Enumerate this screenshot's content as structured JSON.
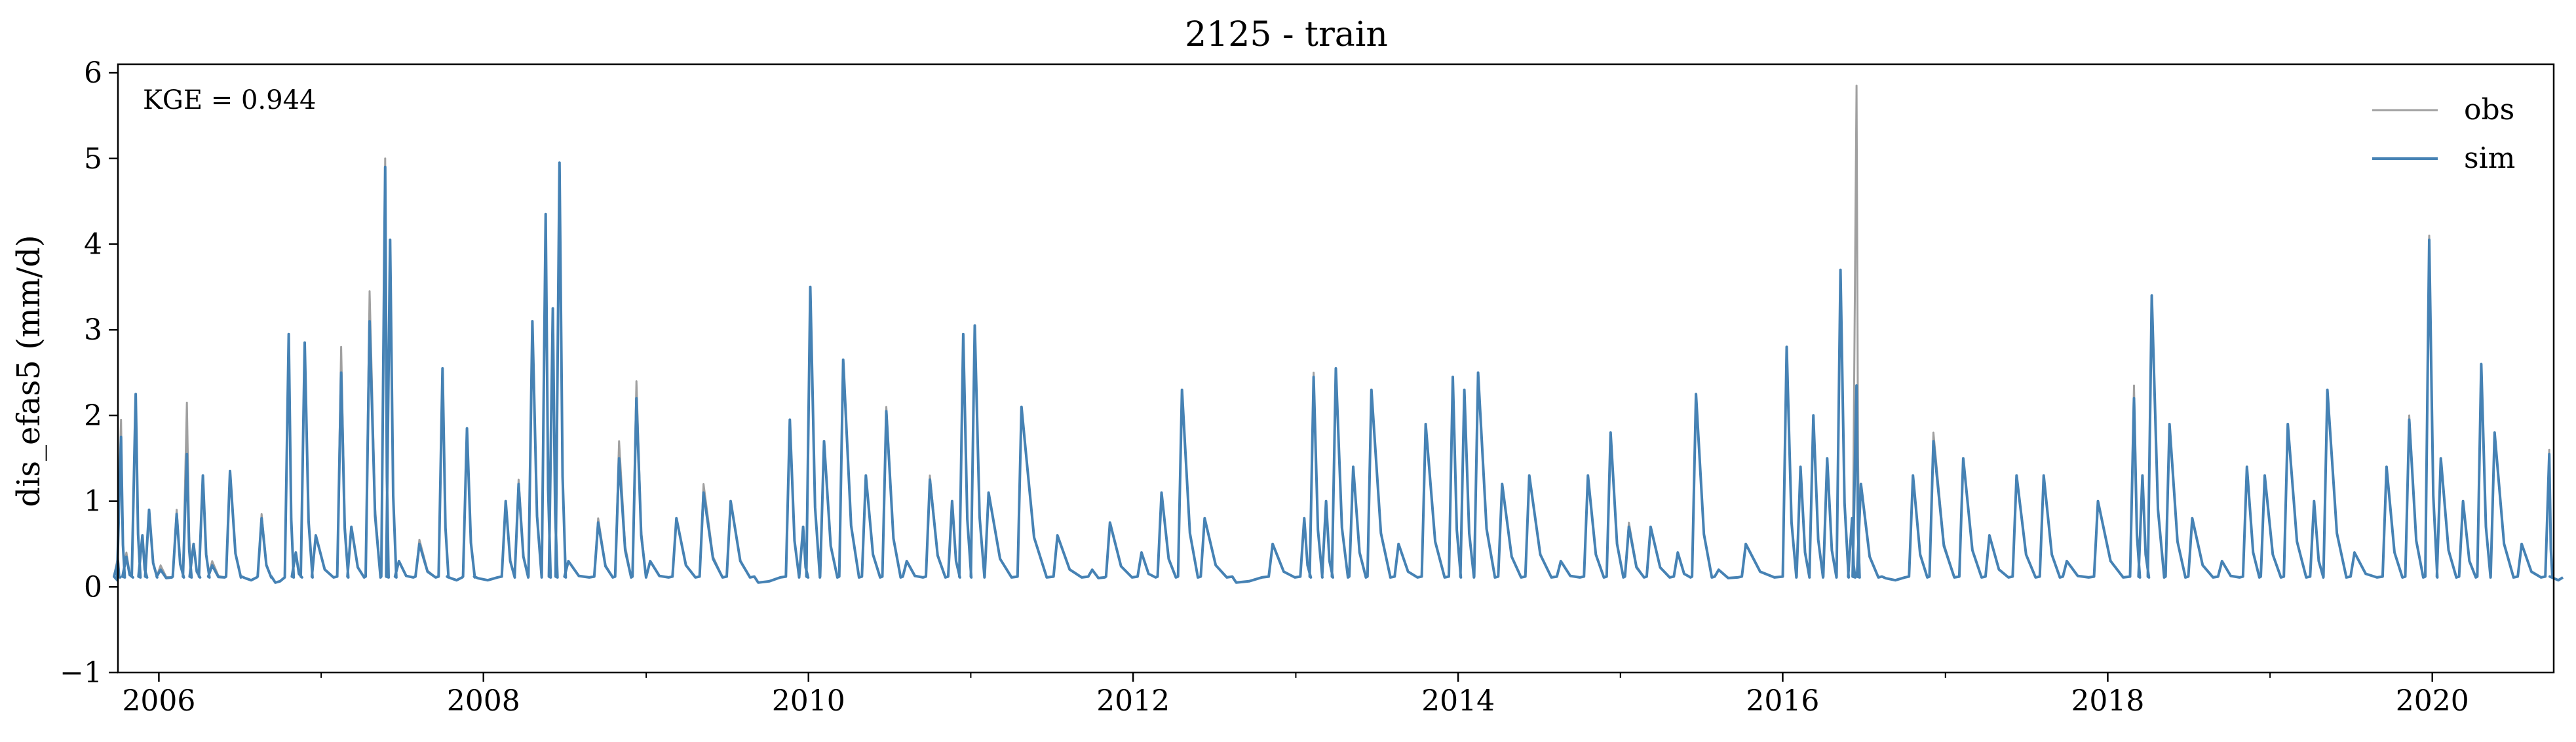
{
  "chart_data": {
    "type": "line",
    "title": "2125 - train",
    "xlabel": "",
    "ylabel": "dis_efas5 (mm/d)",
    "annotation": "KGE = 0.944",
    "x_range": [
      "2005-10-01",
      "2020-09-30"
    ],
    "ylim": [
      -1,
      6.1
    ],
    "y_ticks": [
      -1,
      0,
      1,
      2,
      3,
      4,
      5,
      6
    ],
    "y_tick_labels": [
      "−1",
      "0",
      "1",
      "2",
      "3",
      "4",
      "5",
      "6"
    ],
    "x_ticks": [
      "2006-01-01",
      "2008-01-01",
      "2010-01-01",
      "2012-01-01",
      "2014-01-01",
      "2016-01-01",
      "2018-01-01",
      "2020-01-01"
    ],
    "x_tick_labels": [
      "2006",
      "2008",
      "2010",
      "2012",
      "2014",
      "2016",
      "2018",
      "2020"
    ],
    "grid": false,
    "legend_position": "top-right",
    "series": [
      {
        "name": "obs",
        "color": "#a0a0a0",
        "points": [
          [
            "2005-10-01",
            0.35
          ],
          [
            "2005-10-08",
            1.95
          ],
          [
            "2005-10-20",
            0.4
          ],
          [
            "2005-11-10",
            2.2
          ],
          [
            "2005-11-25",
            0.6
          ],
          [
            "2005-12-10",
            0.9
          ],
          [
            "2006-01-05",
            0.25
          ],
          [
            "2006-02-10",
            0.9
          ],
          [
            "2006-03-05",
            2.15
          ],
          [
            "2006-03-20",
            0.5
          ],
          [
            "2006-04-10",
            1.3
          ],
          [
            "2006-05-01",
            0.3
          ],
          [
            "2006-06-10",
            1.35
          ],
          [
            "2006-07-15",
            0.1
          ],
          [
            "2006-08-20",
            0.85
          ],
          [
            "2006-09-20",
            0.05
          ],
          [
            "2006-10-20",
            2.9
          ],
          [
            "2006-11-05",
            0.4
          ],
          [
            "2006-11-25",
            2.85
          ],
          [
            "2006-12-20",
            0.6
          ],
          [
            "2007-02-15",
            2.8
          ],
          [
            "2007-03-10",
            0.7
          ],
          [
            "2007-04-20",
            3.45
          ],
          [
            "2007-05-25",
            5.0
          ],
          [
            "2007-06-05",
            4.0
          ],
          [
            "2007-06-25",
            0.3
          ],
          [
            "2007-08-10",
            0.55
          ],
          [
            "2007-10-01",
            2.5
          ],
          [
            "2007-10-20",
            0.1
          ],
          [
            "2007-11-25",
            1.8
          ],
          [
            "2007-12-20",
            0.1
          ],
          [
            "2008-02-20",
            1.0
          ],
          [
            "2008-03-20",
            1.25
          ],
          [
            "2008-04-20",
            3.1
          ],
          [
            "2008-05-20",
            4.35
          ],
          [
            "2008-06-05",
            3.2
          ],
          [
            "2008-06-20",
            4.95
          ],
          [
            "2008-07-10",
            0.3
          ],
          [
            "2008-09-15",
            0.8
          ],
          [
            "2008-11-01",
            1.7
          ],
          [
            "2008-12-10",
            2.4
          ],
          [
            "2009-01-10",
            0.3
          ],
          [
            "2009-03-10",
            0.8
          ],
          [
            "2009-05-10",
            1.2
          ],
          [
            "2009-07-10",
            1.0
          ],
          [
            "2009-09-10",
            0.05
          ],
          [
            "2009-11-20",
            1.95
          ],
          [
            "2009-12-20",
            0.7
          ],
          [
            "2010-01-05",
            3.4
          ],
          [
            "2010-02-05",
            1.7
          ],
          [
            "2010-03-20",
            2.6
          ],
          [
            "2010-05-10",
            1.3
          ],
          [
            "2010-06-25",
            2.1
          ],
          [
            "2010-08-10",
            0.3
          ],
          [
            "2010-10-01",
            1.3
          ],
          [
            "2010-11-20",
            1.0
          ],
          [
            "2010-12-15",
            2.95
          ],
          [
            "2011-01-10",
            3.05
          ],
          [
            "2011-02-10",
            1.1
          ],
          [
            "2011-04-25",
            2.1
          ],
          [
            "2011-07-15",
            0.6
          ],
          [
            "2011-10-01",
            0.2
          ],
          [
            "2011-11-10",
            0.75
          ],
          [
            "2012-01-20",
            0.4
          ],
          [
            "2012-03-05",
            1.1
          ],
          [
            "2012-04-20",
            2.3
          ],
          [
            "2012-06-10",
            0.8
          ],
          [
            "2012-08-20",
            0.05
          ],
          [
            "2012-11-10",
            0.5
          ],
          [
            "2013-01-20",
            0.8
          ],
          [
            "2013-02-10",
            2.5
          ],
          [
            "2013-03-10",
            1.0
          ],
          [
            "2013-04-01",
            2.55
          ],
          [
            "2013-05-10",
            1.4
          ],
          [
            "2013-06-20",
            2.3
          ],
          [
            "2013-08-20",
            0.5
          ],
          [
            "2013-10-20",
            1.9
          ],
          [
            "2013-12-20",
            2.45
          ],
          [
            "2014-01-15",
            2.3
          ],
          [
            "2014-02-15",
            2.5
          ],
          [
            "2014-04-10",
            1.2
          ],
          [
            "2014-06-10",
            1.3
          ],
          [
            "2014-08-20",
            0.3
          ],
          [
            "2014-10-20",
            1.3
          ],
          [
            "2014-12-10",
            1.8
          ],
          [
            "2015-01-20",
            0.75
          ],
          [
            "2015-03-10",
            0.7
          ],
          [
            "2015-05-10",
            0.4
          ],
          [
            "2015-06-20",
            2.25
          ],
          [
            "2015-08-10",
            0.2
          ],
          [
            "2015-10-10",
            0.5
          ],
          [
            "2016-01-10",
            2.8
          ],
          [
            "2016-02-10",
            1.4
          ],
          [
            "2016-03-10",
            2.0
          ],
          [
            "2016-04-10",
            1.5
          ],
          [
            "2016-05-10",
            3.7
          ],
          [
            "2016-06-05",
            0.8
          ],
          [
            "2016-06-15",
            5.85
          ],
          [
            "2016-06-25",
            1.2
          ],
          [
            "2016-08-20",
            0.1
          ],
          [
            "2016-10-20",
            1.3
          ],
          [
            "2016-12-05",
            1.8
          ],
          [
            "2017-02-10",
            1.5
          ],
          [
            "2017-04-10",
            0.6
          ],
          [
            "2017-06-10",
            1.3
          ],
          [
            "2017-08-10",
            1.3
          ],
          [
            "2017-10-01",
            0.3
          ],
          [
            "2017-12-10",
            1.0
          ],
          [
            "2018-03-01",
            2.35
          ],
          [
            "2018-03-20",
            1.3
          ],
          [
            "2018-04-10",
            3.4
          ],
          [
            "2018-05-20",
            1.9
          ],
          [
            "2018-07-10",
            0.8
          ],
          [
            "2018-09-15",
            0.3
          ],
          [
            "2018-11-10",
            1.4
          ],
          [
            "2018-12-20",
            1.3
          ],
          [
            "2019-02-10",
            1.9
          ],
          [
            "2019-04-10",
            1.0
          ],
          [
            "2019-05-10",
            2.3
          ],
          [
            "2019-07-10",
            0.4
          ],
          [
            "2019-09-20",
            1.4
          ],
          [
            "2019-11-10",
            2.0
          ],
          [
            "2019-12-25",
            4.1
          ],
          [
            "2020-01-20",
            1.5
          ],
          [
            "2020-03-10",
            1.0
          ],
          [
            "2020-04-20",
            2.6
          ],
          [
            "2020-05-20",
            1.8
          ],
          [
            "2020-07-20",
            0.5
          ],
          [
            "2020-09-20",
            1.6
          ],
          [
            "2020-09-30",
            0.1
          ]
        ]
      },
      {
        "name": "sim",
        "color": "#4682b4",
        "points": [
          [
            "2005-10-01",
            0.3
          ],
          [
            "2005-10-08",
            1.75
          ],
          [
            "2005-10-20",
            0.35
          ],
          [
            "2005-11-10",
            2.25
          ],
          [
            "2005-11-25",
            0.6
          ],
          [
            "2005-12-10",
            0.9
          ],
          [
            "2006-01-05",
            0.2
          ],
          [
            "2006-02-10",
            0.85
          ],
          [
            "2006-03-05",
            1.55
          ],
          [
            "2006-03-20",
            0.5
          ],
          [
            "2006-04-10",
            1.3
          ],
          [
            "2006-05-01",
            0.25
          ],
          [
            "2006-06-10",
            1.35
          ],
          [
            "2006-07-15",
            0.1
          ],
          [
            "2006-08-20",
            0.8
          ],
          [
            "2006-09-20",
            0.05
          ],
          [
            "2006-10-20",
            2.95
          ],
          [
            "2006-11-05",
            0.4
          ],
          [
            "2006-11-25",
            2.85
          ],
          [
            "2006-12-20",
            0.6
          ],
          [
            "2007-02-15",
            2.5
          ],
          [
            "2007-03-10",
            0.7
          ],
          [
            "2007-04-20",
            3.1
          ],
          [
            "2007-05-25",
            4.9
          ],
          [
            "2007-06-05",
            4.05
          ],
          [
            "2007-06-25",
            0.3
          ],
          [
            "2007-08-10",
            0.5
          ],
          [
            "2007-10-01",
            2.55
          ],
          [
            "2007-10-20",
            0.1
          ],
          [
            "2007-11-25",
            1.85
          ],
          [
            "2007-12-20",
            0.1
          ],
          [
            "2008-02-20",
            1.0
          ],
          [
            "2008-03-20",
            1.2
          ],
          [
            "2008-04-20",
            3.1
          ],
          [
            "2008-05-20",
            4.35
          ],
          [
            "2008-06-05",
            3.25
          ],
          [
            "2008-06-20",
            4.95
          ],
          [
            "2008-07-10",
            0.3
          ],
          [
            "2008-09-15",
            0.75
          ],
          [
            "2008-11-01",
            1.5
          ],
          [
            "2008-12-10",
            2.2
          ],
          [
            "2009-01-10",
            0.3
          ],
          [
            "2009-03-10",
            0.8
          ],
          [
            "2009-05-10",
            1.1
          ],
          [
            "2009-07-10",
            1.0
          ],
          [
            "2009-09-10",
            0.05
          ],
          [
            "2009-11-20",
            1.95
          ],
          [
            "2009-12-20",
            0.7
          ],
          [
            "2010-01-05",
            3.5
          ],
          [
            "2010-02-05",
            1.7
          ],
          [
            "2010-03-20",
            2.65
          ],
          [
            "2010-05-10",
            1.3
          ],
          [
            "2010-06-25",
            2.05
          ],
          [
            "2010-08-10",
            0.3
          ],
          [
            "2010-10-01",
            1.25
          ],
          [
            "2010-11-20",
            1.0
          ],
          [
            "2010-12-15",
            2.95
          ],
          [
            "2011-01-10",
            3.05
          ],
          [
            "2011-02-10",
            1.1
          ],
          [
            "2011-04-25",
            2.1
          ],
          [
            "2011-07-15",
            0.6
          ],
          [
            "2011-10-01",
            0.2
          ],
          [
            "2011-11-10",
            0.75
          ],
          [
            "2012-01-20",
            0.4
          ],
          [
            "2012-03-05",
            1.1
          ],
          [
            "2012-04-20",
            2.3
          ],
          [
            "2012-06-10",
            0.8
          ],
          [
            "2012-08-20",
            0.05
          ],
          [
            "2012-11-10",
            0.5
          ],
          [
            "2013-01-20",
            0.8
          ],
          [
            "2013-02-10",
            2.45
          ],
          [
            "2013-03-10",
            1.0
          ],
          [
            "2013-04-01",
            2.55
          ],
          [
            "2013-05-10",
            1.4
          ],
          [
            "2013-06-20",
            2.3
          ],
          [
            "2013-08-20",
            0.5
          ],
          [
            "2013-10-20",
            1.9
          ],
          [
            "2013-12-20",
            2.45
          ],
          [
            "2014-01-15",
            2.3
          ],
          [
            "2014-02-15",
            2.5
          ],
          [
            "2014-04-10",
            1.2
          ],
          [
            "2014-06-10",
            1.3
          ],
          [
            "2014-08-20",
            0.3
          ],
          [
            "2014-10-20",
            1.3
          ],
          [
            "2014-12-10",
            1.8
          ],
          [
            "2015-01-20",
            0.7
          ],
          [
            "2015-03-10",
            0.7
          ],
          [
            "2015-05-10",
            0.4
          ],
          [
            "2015-06-20",
            2.25
          ],
          [
            "2015-08-10",
            0.2
          ],
          [
            "2015-10-10",
            0.5
          ],
          [
            "2016-01-10",
            2.8
          ],
          [
            "2016-02-10",
            1.4
          ],
          [
            "2016-03-10",
            2.0
          ],
          [
            "2016-04-10",
            1.5
          ],
          [
            "2016-05-10",
            3.7
          ],
          [
            "2016-06-05",
            0.8
          ],
          [
            "2016-06-15",
            2.35
          ],
          [
            "2016-06-25",
            1.2
          ],
          [
            "2016-08-20",
            0.1
          ],
          [
            "2016-10-20",
            1.3
          ],
          [
            "2016-12-05",
            1.7
          ],
          [
            "2017-02-10",
            1.5
          ],
          [
            "2017-04-10",
            0.6
          ],
          [
            "2017-06-10",
            1.3
          ],
          [
            "2017-08-10",
            1.3
          ],
          [
            "2017-10-01",
            0.3
          ],
          [
            "2017-12-10",
            1.0
          ],
          [
            "2018-03-01",
            2.2
          ],
          [
            "2018-03-20",
            1.3
          ],
          [
            "2018-04-10",
            3.4
          ],
          [
            "2018-05-20",
            1.9
          ],
          [
            "2018-07-10",
            0.8
          ],
          [
            "2018-09-15",
            0.3
          ],
          [
            "2018-11-10",
            1.4
          ],
          [
            "2018-12-20",
            1.3
          ],
          [
            "2019-02-10",
            1.9
          ],
          [
            "2019-04-10",
            1.0
          ],
          [
            "2019-05-10",
            2.3
          ],
          [
            "2019-07-10",
            0.4
          ],
          [
            "2019-09-20",
            1.4
          ],
          [
            "2019-11-10",
            1.95
          ],
          [
            "2019-12-25",
            4.05
          ],
          [
            "2020-01-20",
            1.5
          ],
          [
            "2020-03-10",
            1.0
          ],
          [
            "2020-04-20",
            2.6
          ],
          [
            "2020-05-20",
            1.8
          ],
          [
            "2020-07-20",
            0.5
          ],
          [
            "2020-09-20",
            1.55
          ],
          [
            "2020-09-30",
            0.1
          ]
        ]
      }
    ]
  }
}
